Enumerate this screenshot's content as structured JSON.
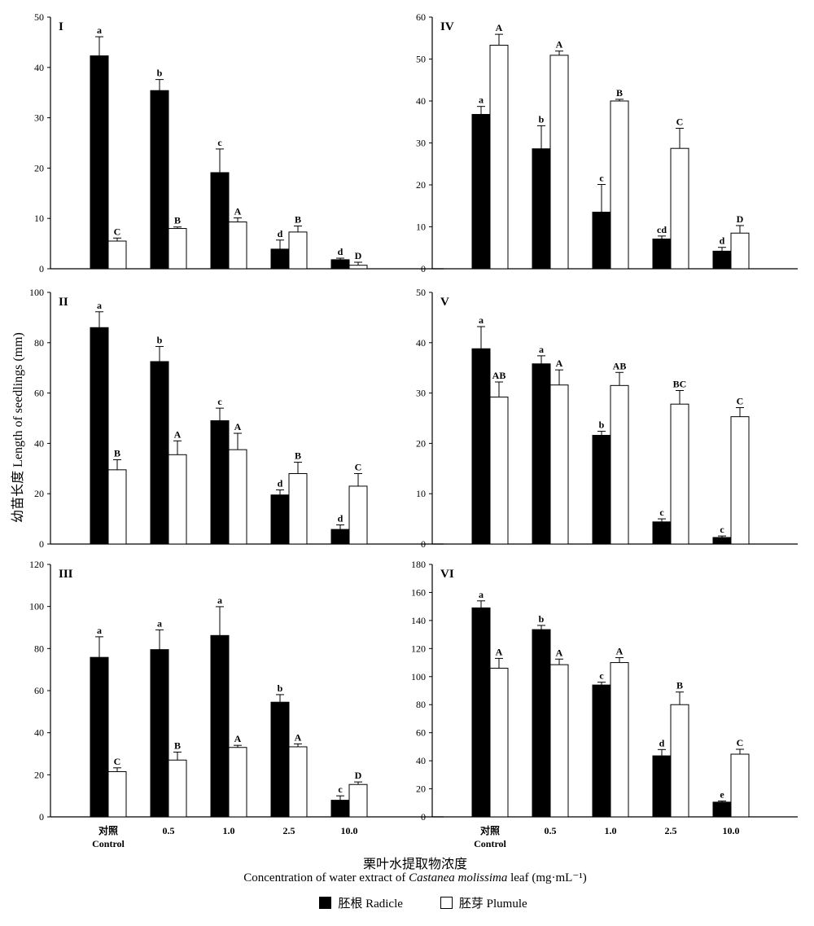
{
  "figure": {
    "ylabel": "幼苗长度 Length of seedlings (mm)",
    "xlabel_cn": "栗叶水提取物浓度",
    "xlabel_en_pre": "Concentration of water extract of ",
    "xlabel_en_italic": "Castanea molissima",
    "xlabel_en_post": " leaf (mg·mL⁻¹)",
    "legend": {
      "radicle": "胚根 Radicle",
      "plumule": "胚芽 Plumule"
    },
    "colors": {
      "radicle": "#000000",
      "plumule": "#ffffff"
    }
  },
  "chart_data": [
    {
      "type": "bar",
      "panel": "I",
      "categories": [
        "对照",
        "0.5",
        "1.0",
        "2.5",
        "10.0"
      ],
      "category_sub": [
        "Control",
        "",
        "",
        "",
        ""
      ],
      "ylim": [
        0,
        50
      ],
      "yticks": [
        0,
        10,
        20,
        30,
        40,
        50
      ],
      "series": [
        {
          "name": "胚根 Radicle",
          "values": [
            42.3,
            35.4,
            19.1,
            3.9,
            1.8
          ],
          "errors": [
            3.8,
            2.2,
            4.7,
            1.8,
            0.3
          ],
          "letters": [
            "a",
            "b",
            "c",
            "d",
            "d"
          ]
        },
        {
          "name": "胚芽 Plumule",
          "values": [
            5.5,
            8.0,
            9.3,
            7.3,
            0.7
          ],
          "errors": [
            0.6,
            0.3,
            0.8,
            1.2,
            0.6
          ],
          "letters": [
            "C",
            "B",
            "A",
            "B",
            "D"
          ]
        }
      ]
    },
    {
      "type": "bar",
      "panel": "IV",
      "categories": [
        "对照",
        "0.5",
        "1.0",
        "2.5",
        "10.0"
      ],
      "category_sub": [
        "Control",
        "",
        "",
        "",
        ""
      ],
      "ylim": [
        0,
        60
      ],
      "yticks": [
        0,
        10,
        20,
        30,
        40,
        50,
        60
      ],
      "series": [
        {
          "name": "胚根 Radicle",
          "values": [
            36.8,
            28.6,
            13.5,
            7.1,
            4.2
          ],
          "errors": [
            1.9,
            5.5,
            6.6,
            0.7,
            0.9
          ],
          "letters": [
            "a",
            "b",
            "c",
            "cd",
            "d"
          ]
        },
        {
          "name": "胚芽 Plumule",
          "values": [
            53.3,
            50.9,
            40.0,
            28.7,
            8.5
          ],
          "errors": [
            2.6,
            1.0,
            0.4,
            4.8,
            1.8
          ],
          "letters": [
            "A",
            "A",
            "B",
            "C",
            "D"
          ]
        }
      ]
    },
    {
      "type": "bar",
      "panel": "II",
      "categories": [
        "对照",
        "0.5",
        "1.0",
        "2.5",
        "10.0"
      ],
      "category_sub": [
        "Control",
        "",
        "",
        "",
        ""
      ],
      "ylim": [
        0,
        100
      ],
      "yticks": [
        0,
        20,
        40,
        60,
        80,
        100
      ],
      "series": [
        {
          "name": "胚根 Radicle",
          "values": [
            86,
            72.5,
            49,
            19.5,
            5.8
          ],
          "errors": [
            6.3,
            6.0,
            5.0,
            2.0,
            1.8
          ],
          "letters": [
            "a",
            "b",
            "c",
            "d",
            "d"
          ]
        },
        {
          "name": "胚芽 Plumule",
          "values": [
            29.5,
            35.5,
            37.5,
            28,
            23
          ],
          "errors": [
            4.0,
            5.5,
            6.5,
            4.5,
            5.0
          ],
          "letters": [
            "B",
            "A",
            "A",
            "B",
            "C"
          ]
        }
      ]
    },
    {
      "type": "bar",
      "panel": "V",
      "categories": [
        "对照",
        "0.5",
        "1.0",
        "2.5",
        "10.0"
      ],
      "category_sub": [
        "Control",
        "",
        "",
        "",
        ""
      ],
      "ylim": [
        0,
        50
      ],
      "yticks": [
        0,
        10,
        20,
        30,
        40,
        50
      ],
      "series": [
        {
          "name": "胚根 Radicle",
          "values": [
            38.8,
            35.8,
            21.6,
            4.4,
            1.3
          ],
          "errors": [
            4.4,
            1.6,
            0.8,
            0.6,
            0.3
          ],
          "letters": [
            "a",
            "a",
            "b",
            "c",
            "c"
          ]
        },
        {
          "name": "胚芽 Plumule",
          "values": [
            29.2,
            31.6,
            31.5,
            27.8,
            25.3
          ],
          "errors": [
            3.0,
            3.0,
            2.6,
            2.7,
            1.8
          ],
          "letters": [
            "AB",
            "A",
            "AB",
            "BC",
            "C"
          ]
        }
      ]
    },
    {
      "type": "bar",
      "panel": "III",
      "categories": [
        "对照",
        "0.5",
        "1.0",
        "2.5",
        "10.0"
      ],
      "category_sub": [
        "Control",
        "",
        "",
        "",
        ""
      ],
      "ylim": [
        0,
        120
      ],
      "yticks": [
        0,
        20,
        40,
        60,
        80,
        100,
        120
      ],
      "series": [
        {
          "name": "胚根 Radicle",
          "values": [
            75.8,
            79.5,
            86.2,
            54.5,
            7.9
          ],
          "errors": [
            9.8,
            9.4,
            13.7,
            3.6,
            2.1
          ],
          "letters": [
            "a",
            "a",
            "a",
            "b",
            "c"
          ]
        },
        {
          "name": "胚芽 Plumule",
          "values": [
            21.5,
            27,
            33,
            33.3,
            15.4
          ],
          "errors": [
            1.8,
            3.8,
            1.0,
            1.4,
            1.2
          ],
          "letters": [
            "C",
            "B",
            "A",
            "A",
            "D"
          ]
        }
      ]
    },
    {
      "type": "bar",
      "panel": "VI",
      "categories": [
        "对照",
        "0.5",
        "1.0",
        "2.5",
        "10.0"
      ],
      "category_sub": [
        "Control",
        "",
        "",
        "",
        ""
      ],
      "ylim": [
        0,
        180
      ],
      "yticks": [
        0,
        20,
        40,
        60,
        80,
        100,
        120,
        140,
        160,
        180
      ],
      "series": [
        {
          "name": "胚根 Radicle",
          "values": [
            149,
            133.5,
            94,
            43.5,
            10.5
          ],
          "errors": [
            5.0,
            3.0,
            2.0,
            4.5,
            0.8
          ],
          "letters": [
            "a",
            "b",
            "c",
            "d",
            "e"
          ]
        },
        {
          "name": "胚芽 Plumule",
          "values": [
            106,
            108.5,
            110,
            80,
            44.7
          ],
          "errors": [
            7.0,
            4.0,
            3.5,
            9.0,
            3.5
          ],
          "letters": [
            "A",
            "A",
            "A",
            "B",
            "C"
          ]
        }
      ]
    }
  ]
}
